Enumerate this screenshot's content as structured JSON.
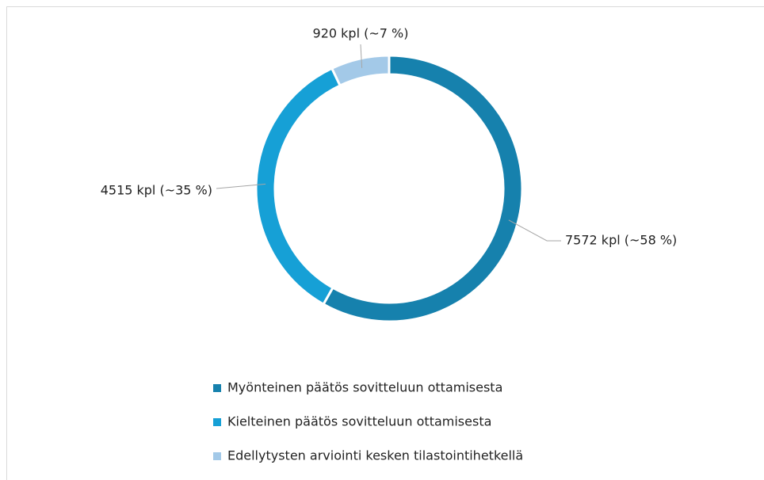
{
  "chart_data": {
    "type": "donut",
    "categories": [
      "Myönteinen päätös sovitteluun ottamisesta",
      "Kielteinen päätös sovitteluun ottamisesta",
      "Edellytysten arviointi kesken tilastointihetkellä"
    ],
    "values": [
      7572,
      4515,
      920
    ],
    "value_labels": [
      "7572 kpl (~58 %)",
      "4515 kpl (~35 %)",
      "920 kpl (~7 %)"
    ],
    "colors": [
      "#1681ad",
      "#16a0d6",
      "#a3c9e8"
    ],
    "legend": "bottom"
  }
}
